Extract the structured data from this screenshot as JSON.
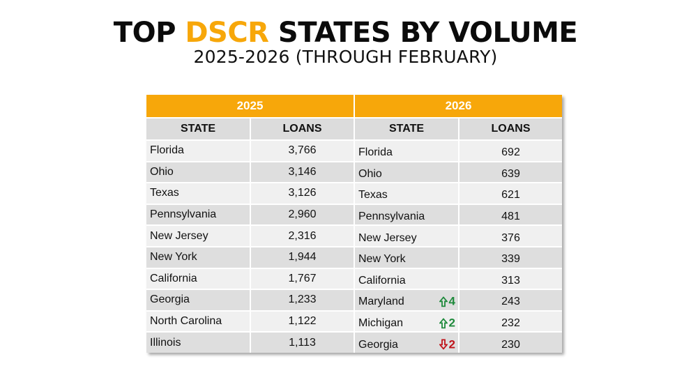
{
  "title": {
    "before": "TOP ",
    "accent": "DSCR",
    "after": " STATES BY VOLUME"
  },
  "subtitle": "2025-2026 (THROUGH FEBRUARY)",
  "colors": {
    "accent": "#f7a70a",
    "up": "#1f8a3c",
    "down": "#c0141b",
    "header_bg": "#dcdcdc"
  },
  "chart_data": {
    "type": "table",
    "title": "TOP DSCR STATES BY VOLUME",
    "subtitle": "2025-2026 (THROUGH FEBRUARY)",
    "columns": [
      "STATE",
      "LOANS"
    ],
    "tables": [
      {
        "year": "2025",
        "rows": [
          {
            "state": "Florida",
            "loans": "3,766"
          },
          {
            "state": "Ohio",
            "loans": "3,146"
          },
          {
            "state": "Texas",
            "loans": "3,126"
          },
          {
            "state": "Pennsylvania",
            "loans": "2,960"
          },
          {
            "state": "New Jersey",
            "loans": "2,316"
          },
          {
            "state": "New York",
            "loans": "1,944"
          },
          {
            "state": "California",
            "loans": "1,767"
          },
          {
            "state": "Georgia",
            "loans": "1,233"
          },
          {
            "state": "North Carolina",
            "loans": "1,122"
          },
          {
            "state": "Illinois",
            "loans": "1,113"
          }
        ]
      },
      {
        "year": "2026",
        "rows": [
          {
            "state": "Florida",
            "loans": "692"
          },
          {
            "state": "Ohio",
            "loans": "639"
          },
          {
            "state": "Texas",
            "loans": "621"
          },
          {
            "state": "Pennsylvania",
            "loans": "481"
          },
          {
            "state": "New Jersey",
            "loans": "376"
          },
          {
            "state": "New York",
            "loans": "339"
          },
          {
            "state": "California",
            "loans": "313"
          },
          {
            "state": "Maryland",
            "loans": "243",
            "change": {
              "direction": "up",
              "amount": "4",
              "icon": "arrow-up-icon"
            }
          },
          {
            "state": "Michigan",
            "loans": "232",
            "change": {
              "direction": "up",
              "amount": "2",
              "icon": "arrow-up-icon"
            }
          },
          {
            "state": "Georgia",
            "loans": "230",
            "change": {
              "direction": "down",
              "amount": "2",
              "icon": "arrow-down-icon"
            }
          }
        ]
      }
    ]
  }
}
